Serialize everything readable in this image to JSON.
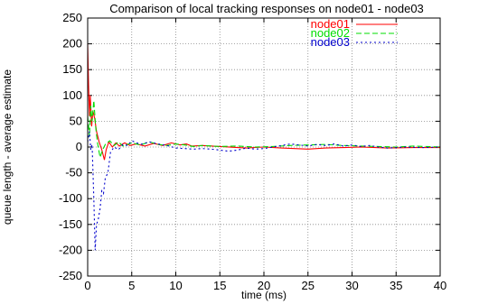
{
  "chart_data": {
    "type": "line",
    "title": "Comparison of local tracking responses on node01 - node03",
    "xlabel": "time (ms)",
    "ylabel": "queue length - average estimate",
    "xlim": [
      0,
      40
    ],
    "ylim": [
      -250,
      250
    ],
    "x_ticks": [
      0,
      5,
      10,
      15,
      20,
      25,
      30,
      35,
      40
    ],
    "y_ticks": [
      -250,
      -200,
      -150,
      -100,
      -50,
      0,
      50,
      100,
      150,
      200,
      250
    ],
    "grid": true,
    "legend_position": "top-right",
    "series": [
      {
        "name": "node01",
        "color": "#ff0000",
        "dash": "solid",
        "points": [
          [
            0,
            200
          ],
          [
            0.1,
            120
          ],
          [
            0.2,
            60
          ],
          [
            0.3,
            100
          ],
          [
            0.45,
            40
          ],
          [
            0.6,
            70
          ],
          [
            0.8,
            55
          ],
          [
            1.0,
            30
          ],
          [
            1.3,
            10
          ],
          [
            1.6,
            -5
          ],
          [
            1.9,
            -25
          ],
          [
            2.1,
            -5
          ],
          [
            2.4,
            10
          ],
          [
            2.8,
            0
          ],
          [
            3.2,
            8
          ],
          [
            3.6,
            2
          ],
          [
            4.2,
            8
          ],
          [
            4.8,
            3
          ],
          [
            5.5,
            6
          ],
          [
            6.5,
            2
          ],
          [
            7.5,
            7
          ],
          [
            8.5,
            3
          ],
          [
            9.5,
            8
          ],
          [
            10.5,
            4
          ],
          [
            11.2,
            6
          ],
          [
            11.8,
            2
          ],
          [
            13,
            3
          ],
          [
            15,
            1
          ],
          [
            18,
            -2
          ],
          [
            20,
            0
          ],
          [
            22,
            -2
          ],
          [
            25,
            -4
          ],
          [
            27,
            -2
          ],
          [
            29,
            -1
          ],
          [
            31,
            0
          ],
          [
            34,
            -2
          ],
          [
            37,
            -1
          ],
          [
            40,
            -1
          ]
        ]
      },
      {
        "name": "node02",
        "color": "#00dd00",
        "dash": "6,3",
        "points": [
          [
            0,
            60
          ],
          [
            0.2,
            20
          ],
          [
            0.35,
            80
          ],
          [
            0.5,
            50
          ],
          [
            0.7,
            90
          ],
          [
            0.9,
            40
          ],
          [
            1.1,
            10
          ],
          [
            1.4,
            -20
          ],
          [
            1.7,
            -5
          ],
          [
            2.0,
            5
          ],
          [
            2.5,
            12
          ],
          [
            3.0,
            3
          ],
          [
            3.5,
            10
          ],
          [
            4.0,
            2
          ],
          [
            5,
            8
          ],
          [
            6,
            4
          ],
          [
            7,
            10
          ],
          [
            8,
            5
          ],
          [
            9,
            3
          ],
          [
            10,
            6
          ],
          [
            11,
            4
          ],
          [
            12,
            1
          ],
          [
            13,
            3
          ],
          [
            15,
            1
          ],
          [
            17,
            2
          ],
          [
            19,
            0
          ],
          [
            21,
            1
          ],
          [
            23,
            3
          ],
          [
            25,
            4
          ],
          [
            27,
            5
          ],
          [
            29,
            3
          ],
          [
            31,
            2
          ],
          [
            33,
            1
          ],
          [
            35,
            0
          ],
          [
            37,
            2
          ],
          [
            40,
            0
          ]
        ]
      },
      {
        "name": "node03",
        "color": "#0000cc",
        "dash": "2,3",
        "points": [
          [
            0,
            10
          ],
          [
            0.2,
            30
          ],
          [
            0.35,
            -5
          ],
          [
            0.5,
            5
          ],
          [
            0.7,
            -100
          ],
          [
            0.85,
            -200
          ],
          [
            1.0,
            -150
          ],
          [
            1.2,
            -140
          ],
          [
            1.4,
            -120
          ],
          [
            1.6,
            -85
          ],
          [
            1.8,
            -90
          ],
          [
            2.0,
            -60
          ],
          [
            2.3,
            -50
          ],
          [
            2.6,
            -10
          ],
          [
            3.0,
            0
          ],
          [
            3.5,
            -5
          ],
          [
            4.0,
            5
          ],
          [
            4.5,
            3
          ],
          [
            5,
            12
          ],
          [
            6,
            5
          ],
          [
            7,
            10
          ],
          [
            8,
            6
          ],
          [
            9,
            3
          ],
          [
            10,
            -2
          ],
          [
            11,
            -3
          ],
          [
            12,
            -4
          ],
          [
            13,
            -3
          ],
          [
            14,
            -4
          ],
          [
            15,
            -6
          ],
          [
            16,
            -8
          ],
          [
            17,
            -6
          ],
          [
            18,
            -2
          ],
          [
            19,
            -4
          ],
          [
            20,
            -3
          ],
          [
            21,
            0
          ],
          [
            22,
            3
          ],
          [
            23,
            6
          ],
          [
            24,
            4
          ],
          [
            25,
            2
          ],
          [
            26,
            5
          ],
          [
            27,
            3
          ],
          [
            28,
            6
          ],
          [
            29,
            2
          ],
          [
            30,
            4
          ],
          [
            31,
            1
          ],
          [
            32,
            3
          ],
          [
            33,
            0
          ],
          [
            34,
            -2
          ],
          [
            35,
            -1
          ],
          [
            36,
            0
          ],
          [
            38,
            -1
          ],
          [
            40,
            0
          ]
        ]
      }
    ]
  }
}
